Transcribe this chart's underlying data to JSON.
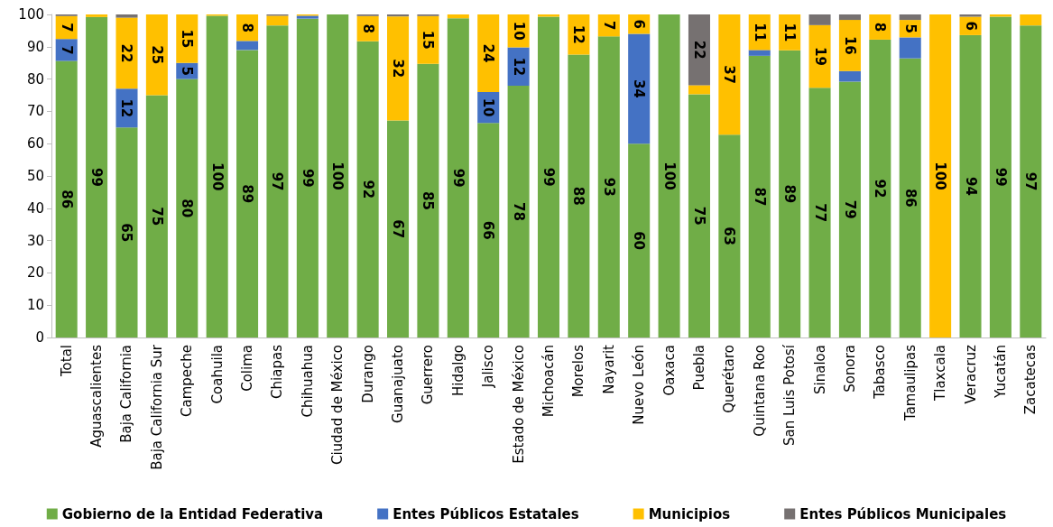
{
  "chart_data": {
    "type": "bar",
    "stacked": true,
    "categories": [
      "Total",
      "Aguascalientes",
      "Baja California",
      "Baja California Sur",
      "Campeche",
      "Coahuila",
      "Colima",
      "Chiapas",
      "Chihuahua",
      "Ciudad de México",
      "Durango",
      "Guanajuato",
      "Guerrero",
      "Hidalgo",
      "Jalisco",
      "Estado de México",
      "Michoacán",
      "Morelos",
      "Nayarit",
      "Nuevo León",
      "Oaxaca",
      "Puebla",
      "Querétaro",
      "Quintana Roo",
      "San Luis Potosí",
      "Sinaloa",
      "Sonora",
      "Tabasco",
      "Tamaulipas",
      "Tlaxcala",
      "Veracruz",
      "Yucatán",
      "Zacatecas"
    ],
    "series": [
      {
        "name": "Gobierno de la Entidad Federativa",
        "color": "#70ad47",
        "values": [
          85.6,
          99.2,
          65,
          75,
          80,
          99.6,
          89,
          96.6,
          98.7,
          100,
          91.7,
          67.2,
          84.7,
          98.8,
          66.4,
          77.9,
          99.3,
          87.6,
          93.2,
          60,
          100,
          75.3,
          62.8,
          87.2,
          88.9,
          77.3,
          79.2,
          92.2,
          86.4,
          0,
          93.6,
          99.3,
          96.6
        ],
        "value_labels": [
          "86",
          "99",
          "65",
          "75",
          "80",
          "100",
          "89",
          "97",
          "99",
          "100",
          "92",
          "67",
          "85",
          "99",
          "66",
          "78",
          "99",
          "88",
          "93",
          "60",
          "100",
          "75",
          "63",
          "87",
          "89",
          "77",
          "79",
          "92",
          "86",
          null,
          "94",
          "99",
          "97"
        ]
      },
      {
        "name": "Entes Públicos Estatales",
        "color": "#4472c4",
        "values": [
          6.8,
          0,
          12,
          0,
          5,
          0,
          2.8,
          0,
          0.9,
          0,
          0,
          0,
          0,
          0,
          9.6,
          11.9,
          0,
          0,
          0,
          34,
          0,
          0,
          0,
          1.8,
          0,
          0,
          3.3,
          0,
          6.5,
          0,
          0,
          0,
          0
        ],
        "value_labels": [
          "7",
          null,
          "12",
          null,
          "5",
          null,
          null,
          null,
          null,
          null,
          null,
          null,
          null,
          null,
          "10",
          "12",
          null,
          null,
          null,
          "34",
          null,
          null,
          null,
          null,
          null,
          null,
          null,
          null,
          null,
          null,
          null,
          null,
          null
        ]
      },
      {
        "name": "Municipios",
        "color": "#ffc000",
        "values": [
          7.1,
          0.8,
          22,
          25,
          15,
          0.4,
          8.2,
          3,
          0.4,
          0,
          7.8,
          32.2,
          14.8,
          1.2,
          24,
          10.2,
          0.7,
          12.4,
          6.8,
          6,
          0,
          2.8,
          37.2,
          11,
          11.1,
          19.4,
          15.8,
          7.8,
          5.4,
          100,
          5.7,
          0.7,
          3.4
        ],
        "value_labels": [
          "7",
          null,
          "22",
          "25",
          "15",
          null,
          "8",
          null,
          null,
          null,
          "8",
          "32",
          "15",
          null,
          "24",
          "10",
          null,
          "12",
          "7",
          "6",
          null,
          null,
          "37",
          "11",
          "11",
          "19",
          "16",
          "8",
          "5",
          "100",
          "6",
          null,
          null
        ]
      },
      {
        "name": "Entes Públicos Municipales",
        "color": "#767171",
        "values": [
          0.5,
          0,
          1,
          0,
          0,
          0,
          0,
          0.4,
          0,
          0,
          0.5,
          0.6,
          0.5,
          0,
          0,
          0,
          0,
          0,
          0,
          0,
          0,
          21.9,
          0,
          0,
          0,
          3.3,
          1.7,
          0,
          1.7,
          0,
          0.7,
          0,
          0
        ],
        "value_labels": [
          null,
          null,
          null,
          null,
          null,
          null,
          null,
          null,
          null,
          null,
          null,
          null,
          null,
          null,
          null,
          null,
          null,
          null,
          null,
          null,
          null,
          "22",
          null,
          null,
          null,
          null,
          null,
          null,
          null,
          null,
          null,
          null,
          null
        ]
      }
    ],
    "ylim": [
      0,
      100
    ],
    "yticks": [
      0,
      10,
      20,
      30,
      40,
      50,
      60,
      70,
      80,
      90,
      100
    ],
    "grid": false,
    "legend": "bottom"
  }
}
